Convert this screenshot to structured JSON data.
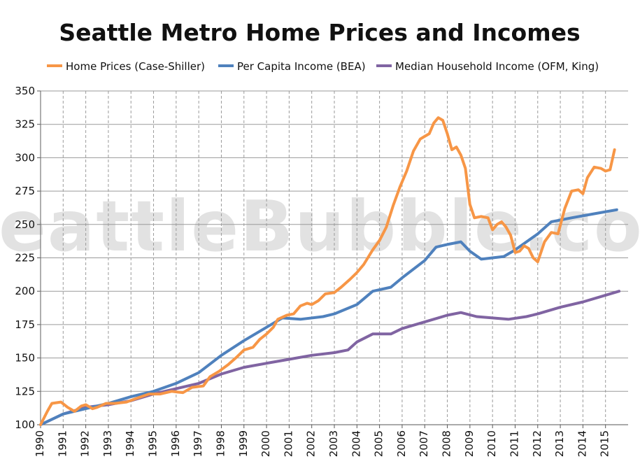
{
  "chart_data": {
    "type": "line",
    "title": "Seattle Metro Home Prices and Incomes",
    "watermark": "SeattleBubble.com",
    "ylim": [
      100,
      350
    ],
    "yticks": [
      100,
      125,
      150,
      175,
      200,
      225,
      250,
      275,
      300,
      325,
      350
    ],
    "xlim": [
      1990,
      2016
    ],
    "xticks": [
      1990,
      1991,
      1992,
      1993,
      1994,
      1995,
      1996,
      1997,
      1998,
      1999,
      2000,
      2001,
      2002,
      2003,
      2004,
      2005,
      2006,
      2007,
      2008,
      2009,
      2010,
      2011,
      2012,
      2013,
      2014,
      2015
    ],
    "grid": {
      "horizontal": "solid",
      "vertical": "dashed"
    },
    "legend_position": "top",
    "series": [
      {
        "name": "Home Prices (Case-Shiller)",
        "color": "#f79646",
        "points": [
          [
            1990.0,
            100
          ],
          [
            1990.3,
            110
          ],
          [
            1990.5,
            116
          ],
          [
            1990.9,
            117
          ],
          [
            1991.2,
            113
          ],
          [
            1991.5,
            110
          ],
          [
            1991.8,
            114
          ],
          [
            1992.0,
            115
          ],
          [
            1992.3,
            112
          ],
          [
            1992.5,
            113
          ],
          [
            1992.9,
            116
          ],
          [
            1993.3,
            116
          ],
          [
            1993.8,
            117
          ],
          [
            1994.3,
            120
          ],
          [
            1994.8,
            123
          ],
          [
            1995.3,
            123
          ],
          [
            1995.8,
            125
          ],
          [
            1996.3,
            124
          ],
          [
            1996.7,
            128
          ],
          [
            1997.2,
            129
          ],
          [
            1997.5,
            136
          ],
          [
            1997.9,
            140
          ],
          [
            1998.3,
            145
          ],
          [
            1998.7,
            151
          ],
          [
            1999.0,
            156
          ],
          [
            1999.4,
            158
          ],
          [
            1999.7,
            164
          ],
          [
            2000.0,
            168
          ],
          [
            2000.3,
            173
          ],
          [
            2000.5,
            179
          ],
          [
            2000.9,
            182
          ],
          [
            2001.2,
            183
          ],
          [
            2001.5,
            189
          ],
          [
            2001.8,
            191
          ],
          [
            2002.0,
            190
          ],
          [
            2002.3,
            193
          ],
          [
            2002.6,
            198
          ],
          [
            2003.0,
            199
          ],
          [
            2003.3,
            203
          ],
          [
            2003.7,
            209
          ],
          [
            2004.0,
            214
          ],
          [
            2004.3,
            220
          ],
          [
            2004.7,
            231
          ],
          [
            2005.0,
            238
          ],
          [
            2005.3,
            248
          ],
          [
            2005.6,
            264
          ],
          [
            2005.9,
            278
          ],
          [
            2006.2,
            290
          ],
          [
            2006.5,
            305
          ],
          [
            2006.8,
            314
          ],
          [
            2007.0,
            316
          ],
          [
            2007.2,
            318
          ],
          [
            2007.4,
            326
          ],
          [
            2007.6,
            330
          ],
          [
            2007.8,
            328
          ],
          [
            2008.0,
            318
          ],
          [
            2008.2,
            306
          ],
          [
            2008.4,
            308
          ],
          [
            2008.6,
            302
          ],
          [
            2008.8,
            292
          ],
          [
            2009.0,
            265
          ],
          [
            2009.2,
            255
          ],
          [
            2009.5,
            256
          ],
          [
            2009.8,
            255
          ],
          [
            2010.0,
            246
          ],
          [
            2010.2,
            250
          ],
          [
            2010.4,
            252
          ],
          [
            2010.6,
            248
          ],
          [
            2010.8,
            242
          ],
          [
            2011.0,
            229
          ],
          [
            2011.2,
            230
          ],
          [
            2011.4,
            234
          ],
          [
            2011.6,
            232
          ],
          [
            2011.8,
            225
          ],
          [
            2012.0,
            222
          ],
          [
            2012.3,
            237
          ],
          [
            2012.6,
            244
          ],
          [
            2012.9,
            243
          ],
          [
            2013.2,
            262
          ],
          [
            2013.5,
            275
          ],
          [
            2013.8,
            276
          ],
          [
            2014.0,
            273
          ],
          [
            2014.2,
            285
          ],
          [
            2014.5,
            293
          ],
          [
            2014.8,
            292
          ],
          [
            2015.0,
            290
          ],
          [
            2015.2,
            291
          ],
          [
            2015.4,
            306
          ]
        ]
      },
      {
        "name": "Per Capita Income (BEA)",
        "color": "#4f81bd",
        "points": [
          [
            1990.0,
            100
          ],
          [
            1991.0,
            108
          ],
          [
            1992.0,
            112
          ],
          [
            1993.0,
            116
          ],
          [
            1994.0,
            121
          ],
          [
            1995.0,
            125
          ],
          [
            1996.0,
            131
          ],
          [
            1997.0,
            139
          ],
          [
            1998.0,
            152
          ],
          [
            1999.0,
            163
          ],
          [
            2000.0,
            173
          ],
          [
            2000.7,
            180
          ],
          [
            2001.5,
            179
          ],
          [
            2002.5,
            181
          ],
          [
            2003.0,
            183
          ],
          [
            2004.0,
            190
          ],
          [
            2004.7,
            200
          ],
          [
            2005.5,
            203
          ],
          [
            2006.0,
            210
          ],
          [
            2007.0,
            223
          ],
          [
            2007.5,
            233
          ],
          [
            2008.0,
            235
          ],
          [
            2008.6,
            237
          ],
          [
            2009.0,
            230
          ],
          [
            2009.5,
            224
          ],
          [
            2010.5,
            226
          ],
          [
            2011.0,
            231
          ],
          [
            2012.0,
            243
          ],
          [
            2012.6,
            252
          ],
          [
            2013.5,
            255
          ],
          [
            2014.5,
            258
          ],
          [
            2015.5,
            261
          ]
        ]
      },
      {
        "name": "Median Household Income (OFM, King)",
        "color": "#8064a2",
        "points": [
          [
            1990.0,
            100
          ],
          [
            1991.0,
            108
          ],
          [
            1992.0,
            113
          ],
          [
            1993.0,
            115
          ],
          [
            1994.0,
            118
          ],
          [
            1995.0,
            123
          ],
          [
            1996.0,
            127
          ],
          [
            1997.0,
            131
          ],
          [
            1998.0,
            138
          ],
          [
            1999.0,
            143
          ],
          [
            2000.0,
            146
          ],
          [
            2001.0,
            149
          ],
          [
            2002.0,
            152
          ],
          [
            2003.0,
            154
          ],
          [
            2003.6,
            156
          ],
          [
            2004.0,
            162
          ],
          [
            2004.7,
            168
          ],
          [
            2005.5,
            168
          ],
          [
            2006.0,
            172
          ],
          [
            2007.0,
            177
          ],
          [
            2008.0,
            182
          ],
          [
            2008.6,
            184
          ],
          [
            2009.3,
            181
          ],
          [
            2010.0,
            180
          ],
          [
            2010.7,
            179
          ],
          [
            2011.5,
            181
          ],
          [
            2012.0,
            183
          ],
          [
            2013.0,
            188
          ],
          [
            2014.0,
            192
          ],
          [
            2015.0,
            197
          ],
          [
            2015.6,
            200
          ]
        ]
      }
    ]
  }
}
